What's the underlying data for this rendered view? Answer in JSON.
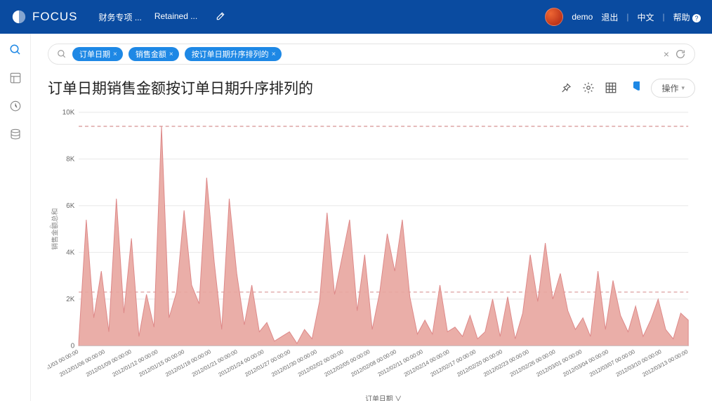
{
  "header": {
    "brand": "FOCUS",
    "tabs": [
      "财务专项 ...",
      "Retained ..."
    ],
    "user": "demo",
    "logout": "退出",
    "lang": "中文",
    "help": "帮助"
  },
  "search": {
    "pills": [
      "订单日期",
      "销售金额",
      "按订单日期升序排列的"
    ]
  },
  "page": {
    "title": "订单日期销售金额按订单日期升序排列的",
    "ops_label": "操作"
  },
  "chart": {
    "type": "area",
    "y_label": "销售金额总和",
    "x_label": "订单日期",
    "y_ticks": [
      0,
      "2K",
      "4K",
      "6K",
      "8K",
      "10K"
    ],
    "y_max": 10000,
    "ref_lines": [
      2300,
      9400
    ],
    "background": "#ffffff",
    "grid_color": "#e8e8e8",
    "ref_color": "#cc7777",
    "area_fill": "#e8a7a1",
    "area_stroke": "#dd8888",
    "x_labels": [
      "2012/01/03 00:00:00",
      "2012/01/06 00:00:00",
      "2012/01/09 00:00:00",
      "2012/01/12 00:00:00",
      "2012/01/15 00:00:00",
      "2012/01/18 00:00:00",
      "2012/01/21 00:00:00",
      "2012/01/24 00:00:00",
      "2012/01/27 00:00:00",
      "2012/01/30 00:00:00",
      "2012/02/02 00:00:00",
      "2012/02/05 00:00:00",
      "2012/02/08 00:00:00",
      "2012/02/11 00:00:00",
      "2012/02/14 00:00:00",
      "2012/02/17 00:00:00",
      "2012/02/20 00:00:00",
      "2012/02/23 00:00:00",
      "2012/02/26 00:00:00",
      "2012/03/01 00:00:00",
      "2012/03/04 00:00:00",
      "2012/03/07 00:00:00",
      "2012/03/10 00:00:00",
      "2012/03/13 00:00:00"
    ],
    "values": [
      200,
      5400,
      1200,
      3200,
      600,
      6300,
      1400,
      4600,
      400,
      2200,
      800,
      9400,
      1200,
      2300,
      5800,
      2600,
      1800,
      7200,
      3600,
      700,
      6300,
      3100,
      900,
      2600,
      600,
      1000,
      200,
      400,
      600,
      100,
      700,
      300,
      1900,
      5700,
      2200,
      3800,
      5400,
      1500,
      3900,
      700,
      2300,
      4800,
      3200,
      5400,
      2100,
      500,
      1100,
      500,
      2600,
      600,
      800,
      400,
      1300,
      300,
      600,
      2000,
      400,
      2100,
      300,
      1400,
      3900,
      1900,
      4400,
      2000,
      3100,
      1500,
      700,
      1200,
      400,
      3200,
      700,
      2800,
      1300,
      600,
      1700,
      400,
      1100,
      2000,
      700,
      300,
      1400,
      1100
    ]
  }
}
